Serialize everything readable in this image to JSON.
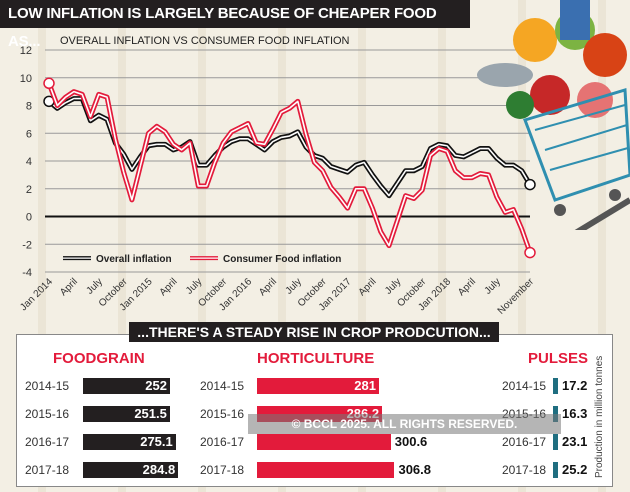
{
  "title": "LOW INFLATION IS LARGELY BECAUSE OF CHEAPER FOOD AS...",
  "watermark": "© BCCL 2025. ALL RIGHTS RESERVED.",
  "colors": {
    "overall": "#111111",
    "food": "#e31b3b",
    "pulses": "#1f6e80",
    "dark": "#231f20"
  },
  "chart_data": [
    {
      "type": "line",
      "title": "OVERALL INFLATION VS CONSUMER FOOD INFLATION",
      "ylim": [
        -4,
        12
      ],
      "yticks": [
        12,
        10,
        8,
        6,
        4,
        2,
        0,
        -2,
        -4
      ],
      "grid": true,
      "legend": "bottom-left",
      "xtick_labels": [
        "Jan 2014",
        "April",
        "July",
        "October",
        "Jan 2015",
        "April",
        "July",
        "October",
        "Jan 2016",
        "April",
        "July",
        "October",
        "Jan 2017",
        "April",
        "July",
        "October",
        "Jan 2018",
        "April",
        "July",
        "November"
      ],
      "x_start": "Jan 2014",
      "x_end": "November 2018",
      "series": [
        {
          "name": "Overall inflation",
          "values": [
            8.3,
            7.8,
            8.2,
            8.5,
            8.5,
            6.9,
            7.3,
            7.0,
            5.3,
            4.5,
            3.4,
            4.3,
            5.1,
            5.2,
            5.2,
            4.8,
            5.0,
            5.4,
            3.7,
            3.7,
            4.4,
            5.0,
            5.4,
            5.6,
            5.6,
            5.2,
            4.8,
            5.4,
            5.7,
            5.8,
            6.1,
            5.0,
            4.4,
            4.2,
            3.6,
            3.4,
            3.2,
            3.7,
            3.9,
            3.0,
            2.2,
            1.5,
            2.4,
            3.3,
            3.3,
            3.6,
            4.9,
            5.2,
            5.1,
            4.4,
            4.3,
            4.6,
            4.9,
            4.9,
            4.2,
            3.7,
            3.7,
            3.3,
            2.3
          ]
        },
        {
          "name": "Consumer Food inflation",
          "values": [
            9.6,
            8.0,
            8.6,
            9.0,
            8.8,
            7.2,
            8.8,
            8.6,
            5.6,
            3.2,
            1.2,
            3.6,
            6.0,
            6.5,
            6.1,
            5.2,
            4.8,
            5.3,
            2.2,
            2.2,
            3.9,
            5.3,
            6.1,
            6.4,
            6.7,
            5.3,
            5.2,
            6.3,
            7.5,
            7.8,
            8.3,
            5.9,
            3.9,
            3.3,
            2.1,
            1.4,
            0.6,
            2.0,
            2.0,
            0.6,
            -1.1,
            -2.1,
            -0.3,
            1.5,
            1.3,
            1.9,
            4.4,
            4.9,
            4.7,
            3.3,
            2.8,
            2.8,
            3.1,
            3.0,
            1.4,
            0.3,
            0.5,
            -0.9,
            -2.6
          ]
        }
      ]
    },
    {
      "type": "bar",
      "title": "...THERE'S A STEADY RISE IN CROP PRODCUTION...",
      "ylabel": "Production in million tonnes",
      "groups": [
        {
          "name": "FOODGRAIN",
          "categories": [
            "2014-15",
            "2015-16",
            "2016-17",
            "2017-18"
          ],
          "values": [
            "252",
            "251.5",
            "275.1",
            "284.8"
          ]
        },
        {
          "name": "HORTICULTURE",
          "categories": [
            "2014-15",
            "2015-16",
            "2016-17",
            "2017-18"
          ],
          "values": [
            "281",
            "286.2",
            "300.6",
            "306.8"
          ]
        },
        {
          "name": "PULSES",
          "categories": [
            "2014-15",
            "2015-16",
            "2016-17",
            "2017-18"
          ],
          "values": [
            "17.2",
            "16.3",
            "23.1",
            "25.2"
          ]
        }
      ]
    }
  ]
}
